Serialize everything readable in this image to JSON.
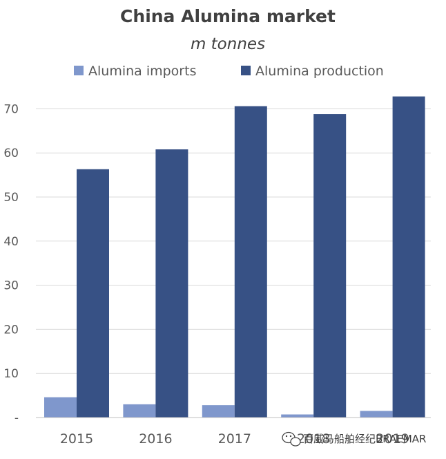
{
  "chart_data": {
    "type": "bar",
    "title": "China Alumina market",
    "subtitle": "m tonnes",
    "categories": [
      "2015",
      "2016",
      "2017",
      "2018",
      "2019"
    ],
    "series": [
      {
        "name": "Alumina imports",
        "values": [
          4.6,
          3.0,
          2.8,
          0.7,
          1.5
        ],
        "color": "#7f97cc"
      },
      {
        "name": "Alumina production",
        "values": [
          56.3,
          60.8,
          70.6,
          68.8,
          72.8
        ],
        "color": "#375185"
      }
    ],
    "yticks": [
      "-",
      "10",
      "20",
      "30",
      "40",
      "50",
      "60",
      "70"
    ],
    "ylim": [
      0,
      76
    ],
    "grid": true,
    "legend": "top"
  },
  "watermark": {
    "text": "百威马船舶经纪BRAEMAR",
    "icon": "wechat-icon"
  }
}
